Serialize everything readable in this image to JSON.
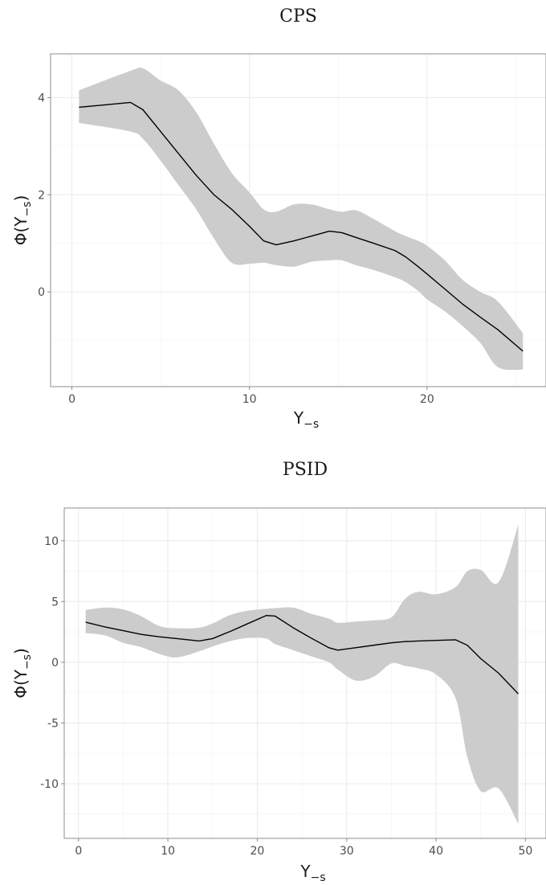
{
  "chart_data": [
    {
      "type": "line",
      "title": "CPS",
      "xlabel": "Y",
      "xlabel_sub": "−s",
      "ylabel": "Φ(Y",
      "ylabel_sub": "−s",
      "ylabel_close": ")",
      "xlim": [
        -1.2,
        26.7
      ],
      "ylim": [
        -1.95,
        4.9
      ],
      "x_ticks": [
        0,
        10,
        20
      ],
      "x_tick_labels": [
        "0",
        "10",
        "20"
      ],
      "y_ticks": [
        0,
        2,
        4
      ],
      "y_tick_labels": [
        "0",
        "2",
        "4"
      ],
      "x_minor": [
        5,
        15,
        25
      ],
      "y_minor": [
        -1,
        1,
        3
      ],
      "grid": true,
      "band_color": "#cccccc",
      "line_color": "#000000",
      "series": [
        {
          "x": [
            0.4,
            3.3,
            4.0,
            5.0,
            6.0,
            7.0,
            8.0,
            9.0,
            10.0,
            10.8,
            11.5,
            12.5,
            13.5,
            14.5,
            15.2,
            16.0,
            17.0,
            18.2,
            18.8,
            19.5,
            20.0,
            21.0,
            22.0,
            23.0,
            24.0,
            25.4
          ],
          "y": [
            3.8,
            3.9,
            3.75,
            3.3,
            2.85,
            2.4,
            2.0,
            1.7,
            1.35,
            1.05,
            0.97,
            1.05,
            1.15,
            1.25,
            1.22,
            1.12,
            1.0,
            0.85,
            0.72,
            0.52,
            0.37,
            0.06,
            -0.25,
            -0.52,
            -0.78,
            -1.22
          ],
          "lower": [
            3.48,
            3.3,
            3.15,
            2.7,
            2.2,
            1.7,
            1.1,
            0.6,
            0.58,
            0.6,
            0.55,
            0.52,
            0.62,
            0.65,
            0.65,
            0.55,
            0.45,
            0.3,
            0.2,
            0.02,
            -0.15,
            -0.4,
            -0.7,
            -1.05,
            -1.55,
            -1.6
          ],
          "upper": [
            4.15,
            4.55,
            4.6,
            4.35,
            4.15,
            3.7,
            3.05,
            2.45,
            2.05,
            1.7,
            1.65,
            1.8,
            1.8,
            1.7,
            1.65,
            1.68,
            1.5,
            1.25,
            1.15,
            1.05,
            0.95,
            0.65,
            0.25,
            0.0,
            -0.2,
            -0.85
          ]
        }
      ]
    },
    {
      "type": "line",
      "title": "PSID",
      "xlabel": "Y",
      "xlabel_sub": "−s",
      "ylabel": "Φ(Y",
      "ylabel_sub": "−s",
      "ylabel_close": ")",
      "xlim": [
        -1.6,
        52.3
      ],
      "ylim": [
        -14.5,
        12.7
      ],
      "x_ticks": [
        0,
        10,
        20,
        30,
        40,
        50
      ],
      "x_tick_labels": [
        "0",
        "10",
        "20",
        "30",
        "40",
        "50"
      ],
      "y_ticks": [
        -10,
        -5,
        0,
        5,
        10
      ],
      "y_tick_labels": [
        "-10",
        "-5",
        "0",
        "5",
        "10"
      ],
      "x_minor": [
        5,
        15,
        25,
        35,
        45
      ],
      "y_minor": [
        -12.5,
        -7.5,
        -2.5,
        2.5,
        7.5
      ],
      "grid": true,
      "band_color": "#cccccc",
      "line_color": "#000000",
      "series": [
        {
          "x": [
            0.8,
            3.0,
            5.0,
            7.0,
            9.0,
            11.0,
            13.5,
            15.0,
            17.0,
            19.0,
            21.0,
            22.0,
            24.0,
            26.0,
            28.0,
            29.0,
            31.0,
            33.0,
            35.0,
            36.5,
            38.0,
            40.0,
            42.2,
            43.5,
            45.0,
            47.0,
            49.2
          ],
          "y": [
            3.3,
            2.9,
            2.6,
            2.3,
            2.1,
            1.95,
            1.75,
            1.95,
            2.55,
            3.2,
            3.85,
            3.8,
            2.85,
            2.0,
            1.2,
            1.0,
            1.2,
            1.4,
            1.6,
            1.7,
            1.75,
            1.8,
            1.85,
            1.4,
            0.3,
            -0.9,
            -2.6
          ],
          "lower": [
            2.4,
            2.2,
            1.6,
            1.25,
            0.7,
            0.4,
            0.9,
            1.3,
            1.75,
            2.0,
            1.95,
            1.5,
            1.0,
            0.5,
            0.0,
            -0.6,
            -1.5,
            -1.2,
            -0.1,
            -0.3,
            -0.5,
            -1.0,
            -3.0,
            -7.8,
            -10.6,
            -10.4,
            -13.3
          ],
          "upper": [
            4.3,
            4.5,
            4.35,
            3.8,
            3.0,
            2.8,
            2.85,
            3.2,
            3.9,
            4.25,
            4.4,
            4.45,
            4.5,
            4.0,
            3.6,
            3.25,
            3.35,
            3.45,
            3.7,
            5.2,
            5.8,
            5.6,
            6.2,
            7.5,
            7.6,
            6.6,
            11.3
          ]
        }
      ]
    }
  ]
}
